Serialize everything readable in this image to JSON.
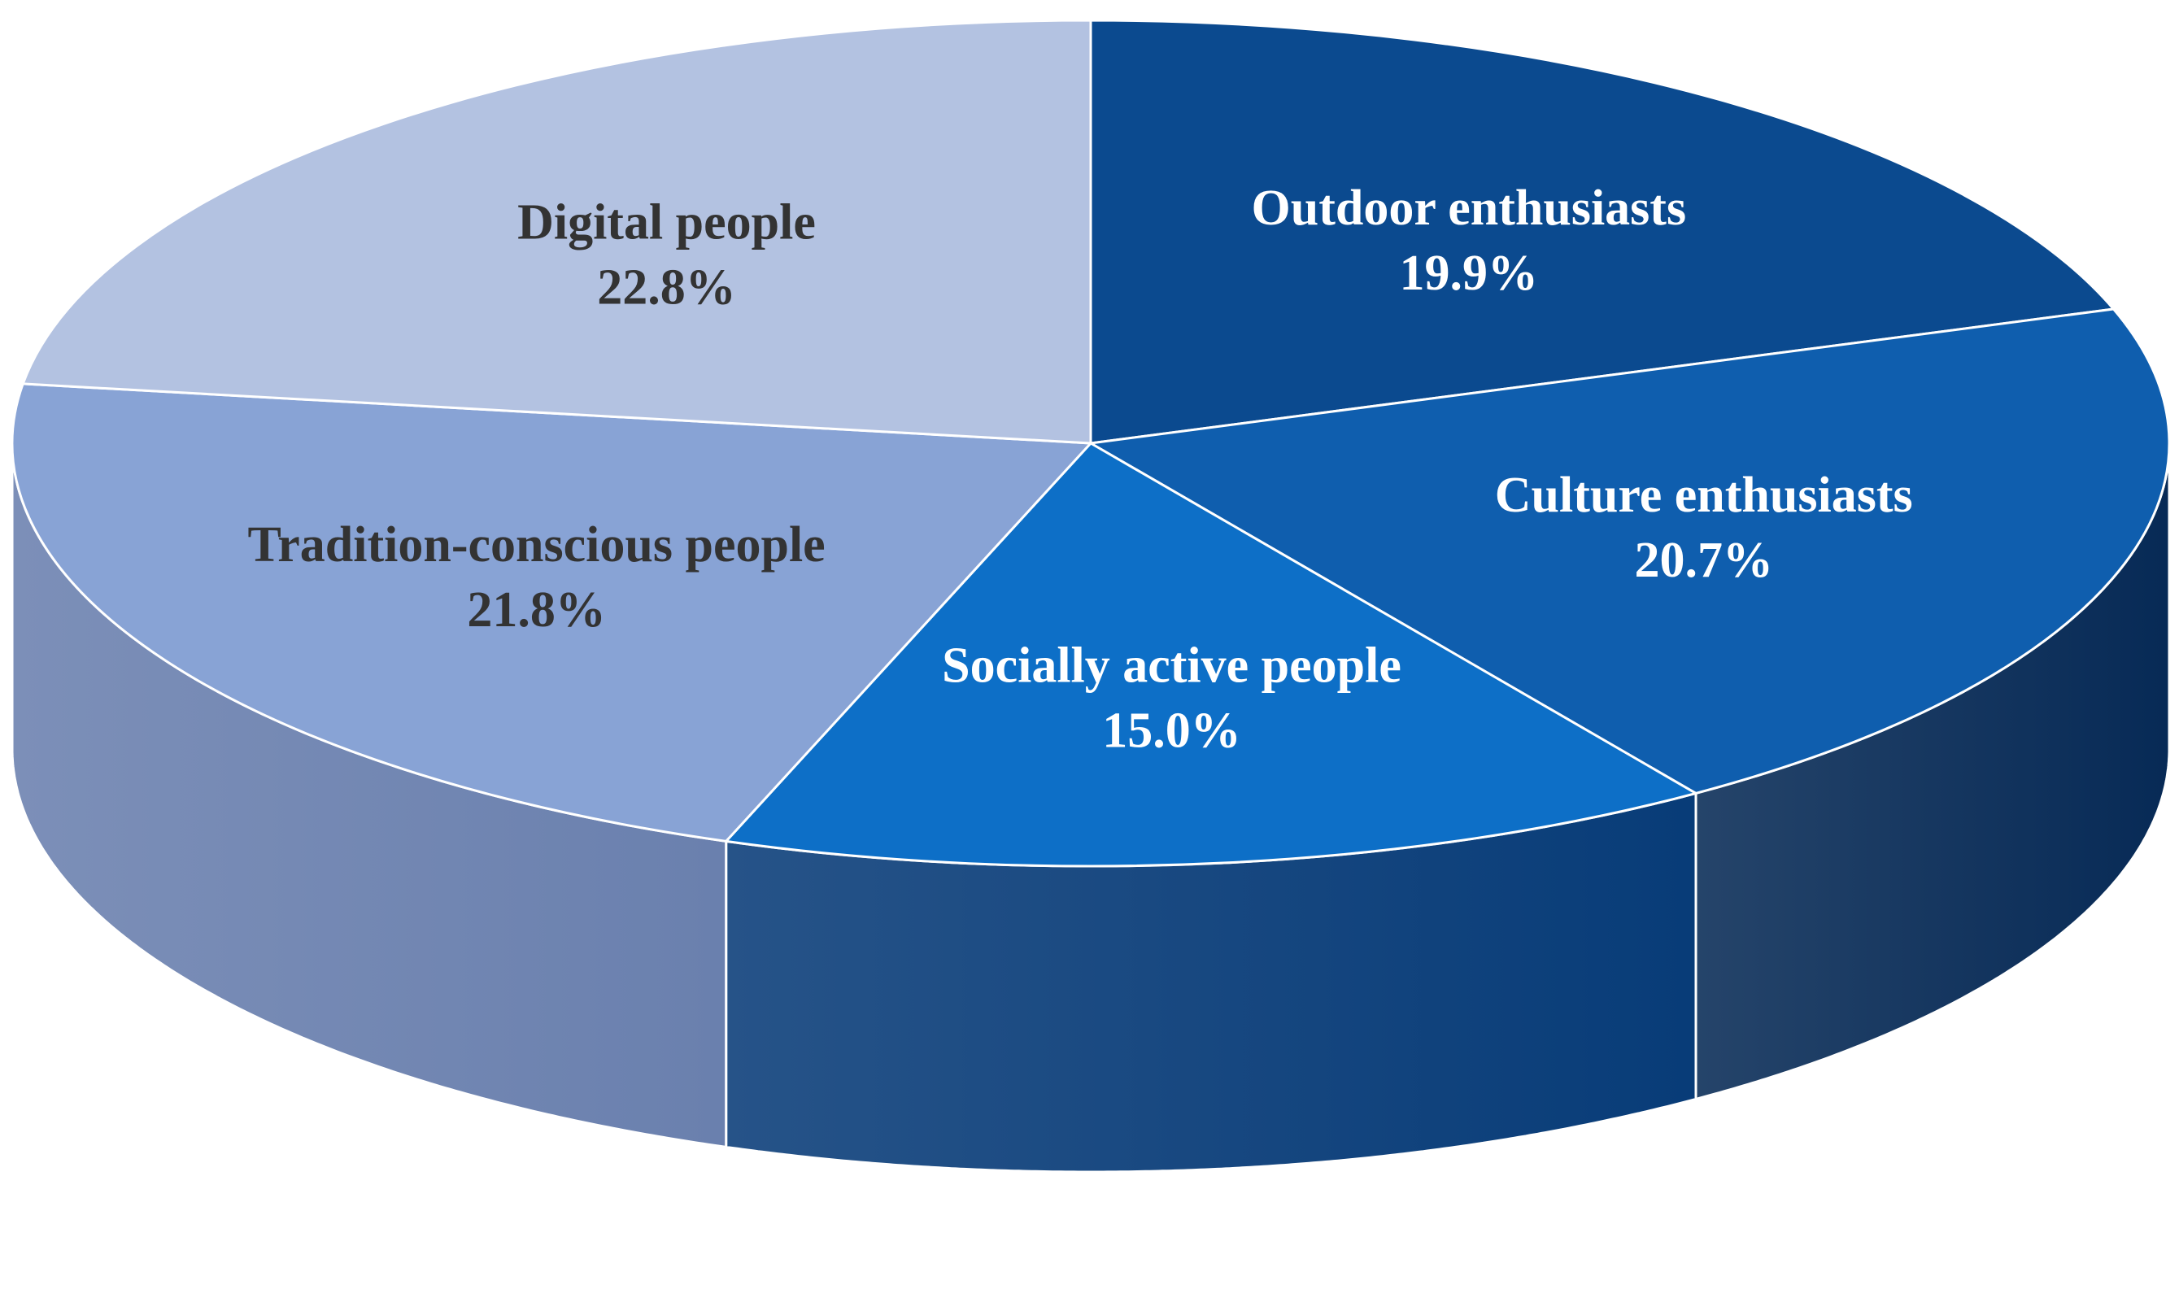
{
  "chart_data": {
    "type": "pie",
    "style": "3d-exploded-none",
    "slices": [
      {
        "label": "Outdoor enthusiasts",
        "value": 19.9,
        "value_label": "19.9%",
        "color": "#0B4A8F",
        "side_color": "#07315F",
        "text_color": "#FFFFFF"
      },
      {
        "label": "Culture enthusiasts",
        "value": 20.7,
        "value_label": "20.7%",
        "color": "#0F5EAE",
        "side_color": "#072A56",
        "text_color": "#FFFFFF"
      },
      {
        "label": "Socially active people",
        "value": 15.0,
        "value_label": "15.0%",
        "color": "#0D6FC7",
        "side_color": "#083C78",
        "text_color": "#FFFFFF"
      },
      {
        "label": "Tradition-conscious people",
        "value": 21.8,
        "value_label": "21.8%",
        "color": "#88A3D5",
        "side_color": "#6A80AE",
        "text_color": "#333333"
      },
      {
        "label": "Digital people",
        "value": 22.8,
        "value_label": "22.8%",
        "color": "#B3C2E1",
        "side_color": "#8C9CC2",
        "text_color": "#333333"
      }
    ],
    "start_angle_deg": 90,
    "direction": "clockwise",
    "legend": "none"
  }
}
